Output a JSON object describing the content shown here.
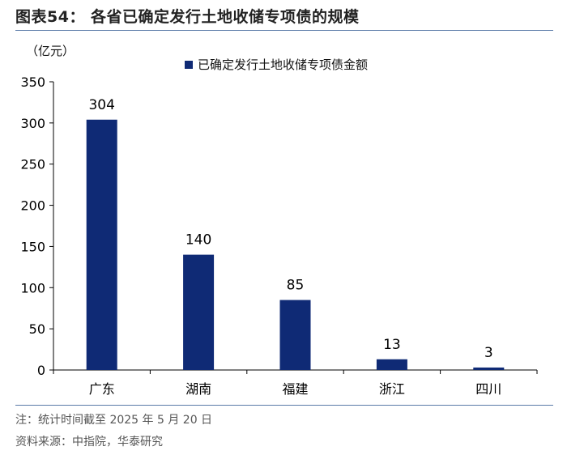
{
  "header": {
    "title": "图表54：  各省已确定发行土地收储专项债的规模"
  },
  "footer": {
    "note": "注：统计时间截至 2025 年 5 月 20 日",
    "source": "资料来源：中指院，华泰研究"
  },
  "colors": {
    "bar": "#0f2a75",
    "rule": "#5a7aa8"
  },
  "chart_data": {
    "type": "bar",
    "title": "",
    "unit_label": "（亿元）",
    "xlabel": "",
    "ylabel": "（亿元）",
    "categories": [
      "广东",
      "湖南",
      "福建",
      "浙江",
      "四川"
    ],
    "series": [
      {
        "name": "已确定发行土地收储专项债金额",
        "values": [
          304,
          140,
          85,
          13,
          3
        ]
      }
    ],
    "ylim": [
      0,
      350
    ],
    "yticks": [
      0,
      50,
      100,
      150,
      200,
      250,
      300,
      350
    ],
    "data_labels": [
      "304",
      "140",
      "85",
      "13",
      "3"
    ],
    "grid": false,
    "legend_position": "top"
  }
}
